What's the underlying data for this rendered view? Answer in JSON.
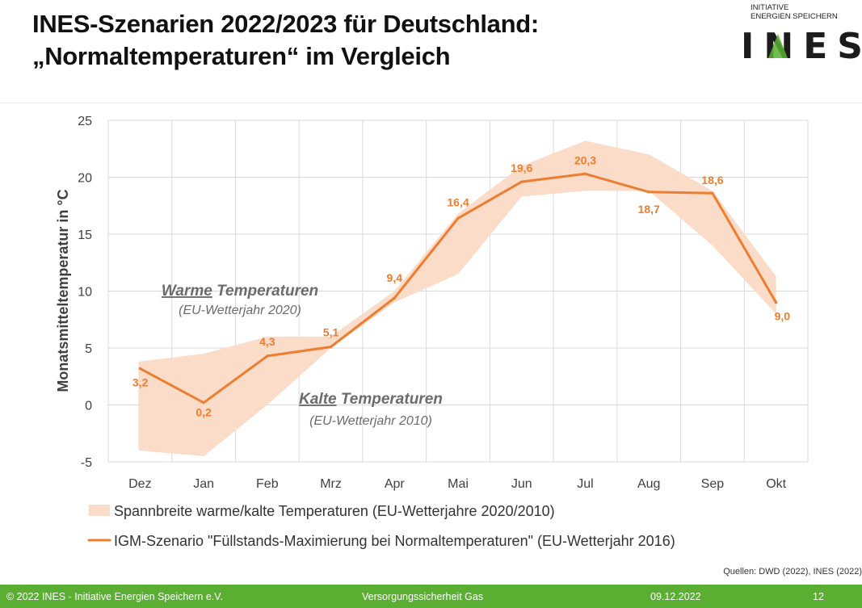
{
  "header": {
    "title_line1": "INES-Szenarien 2022/2023 für Deutschland:",
    "title_line2": "„Normaltemperaturen“ im Vergleich"
  },
  "logo": {
    "line1": "INITIATIVE",
    "line2": "ENERGIEN SPEICHERN",
    "word": "INES"
  },
  "colors": {
    "line": "#ed7d31",
    "band": "#fbdcc9",
    "grid": "#d9d9d9",
    "axis_text": "#404040",
    "annotation": "#6b6b6b",
    "footer": "#5aae32"
  },
  "chart_data": {
    "type": "line",
    "title": "",
    "xlabel": "",
    "ylabel": "Monatsmitteltemperatur in °C",
    "ylim": [
      -5,
      25
    ],
    "yticks": [
      "-5",
      "0",
      "5",
      "10",
      "15",
      "20",
      "25"
    ],
    "grid": true,
    "categories": [
      "Dez",
      "Jan",
      "Feb",
      "Mrz",
      "Apr",
      "Mai",
      "Jun",
      "Jul",
      "Aug",
      "Sep",
      "Okt"
    ],
    "series": [
      {
        "name": "IGM-Szenario \"Füllstands-Maximierung bei Normaltemperaturen\" (EU-Wetterjahr 2016)",
        "type": "line",
        "values": [
          3.2,
          0.2,
          4.3,
          5.1,
          9.4,
          16.4,
          19.6,
          20.3,
          18.7,
          18.6,
          9.0
        ],
        "labels": [
          "3,2",
          "0,2",
          "4,3",
          "5,1",
          "9,4",
          "16,4",
          "19,6",
          "20,3",
          "18,7",
          "18,6",
          "9,0"
        ]
      },
      {
        "name": "Spannbreite warme/kalte Temperaturen (EU-Wetterjahre 2020/2010)",
        "type": "range",
        "upper": [
          3.8,
          4.5,
          6.0,
          6.0,
          10.0,
          16.8,
          21.0,
          23.2,
          22.0,
          18.8,
          11.3
        ],
        "lower": [
          -4.0,
          -4.5,
          0.0,
          5.0,
          9.0,
          11.5,
          18.3,
          18.8,
          18.8,
          14.0,
          8.0
        ]
      }
    ],
    "annotations": [
      {
        "id": "warm",
        "emph": "Warme",
        "rest": " Temperaturen",
        "sub": "(EU-Wetterjahr 2020)"
      },
      {
        "id": "kalt",
        "emph": "Kalte",
        "rest": " Temperaturen",
        "sub": "(EU-Wetterjahr 2010)"
      }
    ],
    "legend": [
      {
        "kind": "band",
        "label": "Spannbreite warme/kalte Temperaturen (EU-Wetterjahre 2020/2010)"
      },
      {
        "kind": "line",
        "label": "IGM-Szenario \"Füllstands-Maximierung bei Normaltemperaturen\" (EU-Wetterjahr 2016)"
      }
    ]
  },
  "source": "Quellen: DWD (2022), INES (2022)",
  "footer": {
    "copyright": "© 2022 INES - Initiative Energien Speichern e.V.",
    "topic": "Versorgungssicherheit Gas",
    "date": "09.12.2022",
    "page": "12"
  }
}
